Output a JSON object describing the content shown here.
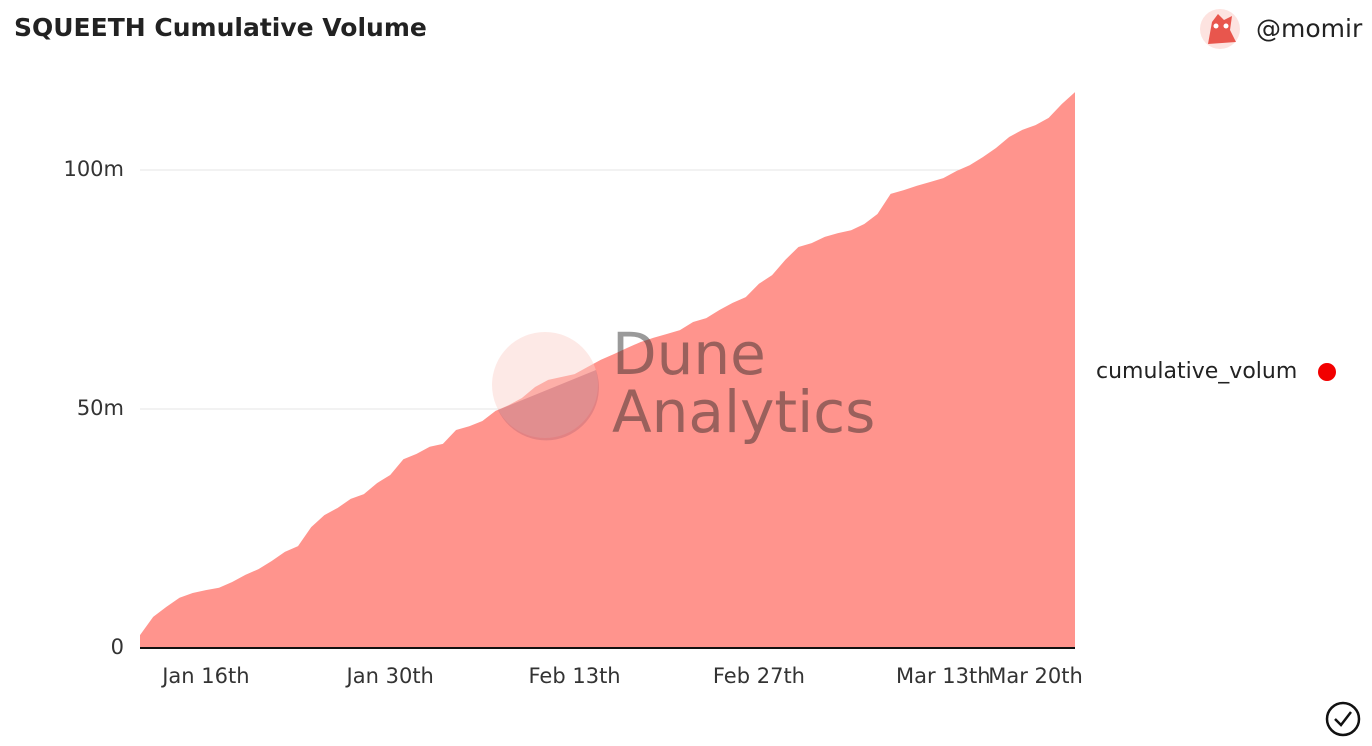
{
  "chart_data": {
    "type": "area",
    "title": "SQUEETH Cumulative Volume",
    "author": "@momir",
    "watermark": [
      "Dune",
      "Analytics"
    ],
    "categories": [
      null,
      null,
      null,
      null,
      null,
      "Jan 16th",
      null,
      null,
      null,
      null,
      null,
      null,
      null,
      null,
      null,
      null,
      null,
      null,
      null,
      "Jan 30th",
      null,
      null,
      null,
      null,
      null,
      null,
      null,
      null,
      null,
      null,
      null,
      null,
      null,
      "Feb 13th",
      null,
      null,
      null,
      null,
      null,
      null,
      null,
      null,
      null,
      null,
      null,
      null,
      null,
      "Feb 27th",
      null,
      null,
      null,
      null,
      null,
      null,
      null,
      null,
      null,
      null,
      null,
      null,
      null,
      "Mar 13th",
      null,
      null,
      null,
      null,
      null,
      null,
      "Mar 20th",
      null,
      null,
      null
    ],
    "series": [
      {
        "name": "cumulative_volum",
        "color": "#ff948d",
        "marker_color": "#f20000",
        "values": [
          2.7,
          6.5,
          8.6,
          10.5,
          11.5,
          12.1,
          12.6,
          13.8,
          15.3,
          16.5,
          18.2,
          20.1,
          21.3,
          25.3,
          27.8,
          29.3,
          31.2,
          32.2,
          34.5,
          36.2,
          39.5,
          40.6,
          42.1,
          42.7,
          45.6,
          46.4,
          47.5,
          49.6,
          50.8,
          52.3,
          54.6,
          56.1,
          56.7,
          57.3,
          58.8,
          60.3,
          61.5,
          62.8,
          64.0,
          64.9,
          65.7,
          66.5,
          68.2,
          69.0,
          70.7,
          72.2,
          73.4,
          76.2,
          78.0,
          81.2,
          83.9,
          84.7,
          86.0,
          86.8,
          87.4,
          88.7,
          90.8,
          95.0,
          95.8,
          96.7,
          97.5,
          98.3,
          99.8,
          101.0,
          102.7,
          104.6,
          106.9,
          108.4,
          109.4,
          110.9,
          113.8,
          116.3
        ]
      }
    ],
    "ylim": [
      0,
      120
    ],
    "yticks": [
      0,
      {
        "value": 50,
        "label": "50m"
      },
      {
        "value": 100,
        "label": "100m"
      }
    ],
    "grid": true,
    "legend": "right"
  }
}
